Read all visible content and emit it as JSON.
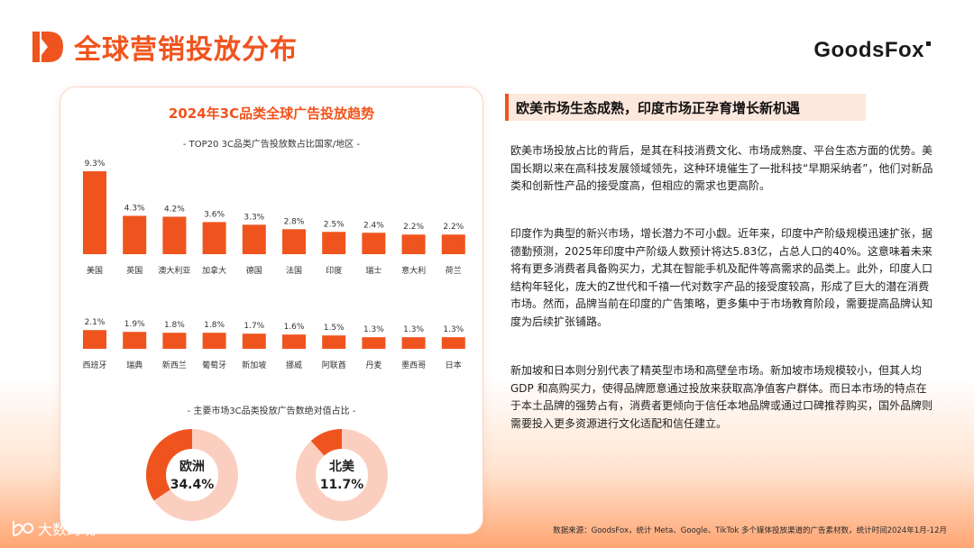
{
  "header": {
    "title": "全球营销投放分布",
    "brand": "GoodsFox"
  },
  "accent_color": "#f0541e",
  "light_accent_color": "#fbcfbf",
  "chart_data": [
    {
      "type": "bar",
      "title": "2024年3C品类全球广告投放趋势",
      "subtitle": "- TOP20 3C品类广告投放数占比国家/地区 -",
      "categories": [
        "美国",
        "英国",
        "澳大利亚",
        "加拿大",
        "德国",
        "法国",
        "印度",
        "瑞士",
        "意大利",
        "荷兰",
        "西班牙",
        "瑞典",
        "新西兰",
        "葡萄牙",
        "新加坡",
        "挪威",
        "阿联酋",
        "丹麦",
        "墨西哥",
        "日本"
      ],
      "values": [
        9.3,
        4.3,
        4.2,
        3.6,
        3.3,
        2.8,
        2.5,
        2.4,
        2.2,
        2.2,
        2.1,
        1.9,
        1.8,
        1.8,
        1.7,
        1.6,
        1.5,
        1.3,
        1.3,
        1.3
      ],
      "value_labels": [
        "9.3%",
        "4.3%",
        "4.2%",
        "3.6%",
        "3.3%",
        "2.8%",
        "2.5%",
        "2.4%",
        "2.2%",
        "2.2%",
        "2.1%",
        "1.9%",
        "1.8%",
        "1.8%",
        "1.7%",
        "1.6%",
        "1.5%",
        "1.3%",
        "1.3%",
        "1.3%"
      ],
      "unit": "%",
      "legend": "none",
      "grid": false
    },
    {
      "type": "pie",
      "subtitle": "- 主要市场3C品类投放广告数绝对值占比 -",
      "slices": [
        {
          "label": "欧洲",
          "value": 34.4,
          "value_label": "34.4%"
        },
        {
          "label": "北美",
          "value": 11.7,
          "value_label": "11.7%"
        }
      ]
    }
  ],
  "right_panel": {
    "heading": "欧美市场生态成熟，印度市场正孕育增长新机遇",
    "paragraphs": [
      "欧美市场投放占比的背后，是其在科技消费文化、市场成熟度、平台生态方面的优势。美国长期以来在高科技发展领域领先，这种环境催生了一批科技“早期采纳者”，他们对新品类和创新性产品的接受度高，但相应的需求也更高阶。",
      "印度作为典型的新兴市场，增长潜力不可小觑。近年来，印度中产阶级规模迅速扩张，据德勤预测，2025年印度中产阶级人数预计将达5.83亿，占总人口的40%。这意味着未来将有更多消费者具备购买力，尤其在智能手机及配件等高需求的品类上。此外，印度人口结构年轻化，庞大的Z世代和千禧一代对数字产品的接受度较高，形成了巨大的潜在消费市场。然而，品牌当前在印度的广告策略，更多集中于市场教育阶段，需要提高品牌认知度为后续扩张铺路。",
      "新加坡和日本则分别代表了精英型市场和高壁垒市场。新加坡市场规模较小，但其人均 GDP 和高购买力，使得品牌愿意通过投放来获取高净值客户群体。而日本市场的特点在于本土品牌的强势占有，消费者更倾向于信任本地品牌或通过口碑推荐购买，国外品牌则需要投入更多资源进行文化适配和信任建立。"
    ]
  },
  "footer": {
    "watermark": "大数跨境",
    "source": "数据来源：GoodsFox，统计 Meta、Google、TikTok 多个媒体投放渠道的广告素材数，统计时间2024年1月-12月"
  }
}
